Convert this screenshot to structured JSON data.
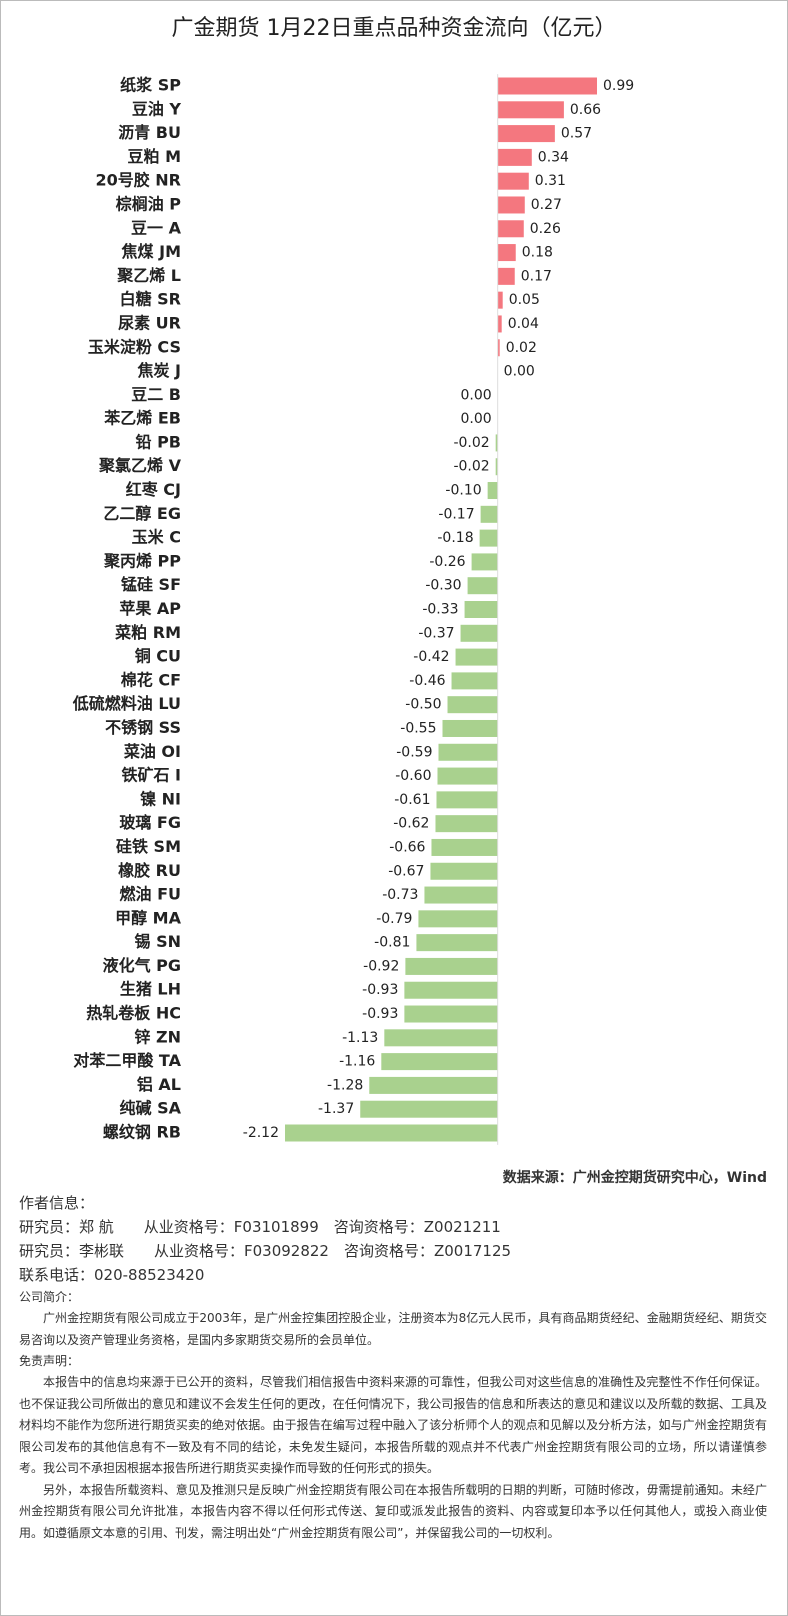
{
  "chart_data": {
    "type": "hbar",
    "title": "广金期货 1月22日重点品种资金流向（亿元）",
    "categories": [
      "纸浆 SP",
      "豆油 Y",
      "沥青 BU",
      "豆粕 M",
      "20号胶 NR",
      "棕榈油 P",
      "豆一 A",
      "焦煤 JM",
      "聚乙烯 L",
      "白糖 SR",
      "尿素 UR",
      "玉米淀粉 CS",
      "焦炭 J",
      "豆二 B",
      "苯乙烯 EB",
      "铅 PB",
      "聚氯乙烯 V",
      "红枣 CJ",
      "乙二醇 EG",
      "玉米 C",
      "聚丙烯 PP",
      "锰硅 SF",
      "苹果 AP",
      "菜粕 RM",
      "铜 CU",
      "棉花 CF",
      "低硫燃料油 LU",
      "不锈钢 SS",
      "菜油 OI",
      "铁矿石 I",
      "镍 NI",
      "玻璃 FG",
      "硅铁 SM",
      "橡胶 RU",
      "燃油 FU",
      "甲醇 MA",
      "锡 SN",
      "液化气 PG",
      "生猪 LH",
      "热轧卷板 HC",
      "锌 ZN",
      "对苯二甲酸 TA",
      "铝 AL",
      "纯碱 SA",
      "螺纹钢 RB"
    ],
    "values": [
      0.99,
      0.66,
      0.57,
      0.34,
      0.31,
      0.27,
      0.26,
      0.18,
      0.17,
      0.05,
      0.04,
      0.02,
      0,
      0,
      0,
      -0.02,
      -0.02,
      -0.1,
      -0.17,
      -0.18,
      -0.26,
      -0.3,
      -0.33,
      -0.37,
      -0.42,
      -0.46,
      -0.5,
      -0.55,
      -0.59,
      -0.6,
      -0.61,
      -0.62,
      -0.66,
      -0.67,
      -0.73,
      -0.79,
      -0.81,
      -0.92,
      -0.93,
      -0.93,
      -1.13,
      -1.16,
      -1.28,
      -1.37,
      -2.12
    ],
    "value_labels": [
      "0.99",
      "0.66",
      "0.57",
      "0.34",
      "0.31",
      "0.27",
      "0.26",
      "0.18",
      "0.17",
      "0.05",
      "0.04",
      "0.02",
      "0.00",
      "0.00",
      "0.00",
      "-0.02",
      "-0.02",
      "-0.10",
      "-0.17",
      "-0.18",
      "-0.26",
      "-0.30",
      "-0.33",
      "-0.37",
      "-0.42",
      "-0.46",
      "-0.50",
      "-0.55",
      "-0.59",
      "-0.60",
      "-0.61",
      "-0.62",
      "-0.66",
      "-0.67",
      "-0.73",
      "-0.79",
      "-0.81",
      "-0.92",
      "-0.93",
      "-0.93",
      "-1.13",
      "-1.16",
      "-1.28",
      "-1.37",
      "-2.12"
    ],
    "positive_color": "#f4777f",
    "negative_color": "#a9d18e"
  },
  "source": "数据来源：广州金控期货研究中心，Wind",
  "authors": {
    "heading": "作者信息：",
    "lines": [
      "研究员：郑 航　　从业资格号：F03101899　咨询资格号：Z0021211",
      "研究员：李彬联　　从业资格号：F03092822　咨询资格号：Z0017125",
      "联系电话：020-88523420"
    ]
  },
  "intro": {
    "heading": "公司简介：",
    "text": "广州金控期货有限公司成立于2003年，是广州金控集团控股企业，注册资本为8亿元人民币，具有商品期货经纪、金融期货经纪、期货交易咨询以及资产管理业务资格，是国内多家期货交易所的会员单位。"
  },
  "disclaimer": {
    "heading": "免责声明：",
    "paragraphs": [
      "本报告中的信息均来源于已公开的资料，尽管我们相信报告中资料来源的可靠性，但我公司对这些信息的准确性及完整性不作任何保证。也不保证我公司所做出的意见和建议不会发生任何的更改，在任何情况下，我公司报告的信息和所表达的意见和建议以及所载的数据、工具及材料均不能作为您所进行期货买卖的绝对依据。由于报告在编写过程中融入了该分析师个人的观点和见解以及分析方法，如与广州金控期货有限公司发布的其他信息有不一致及有不同的结论，未免发生疑问，本报告所载的观点并不代表广州金控期货有限公司的立场，所以请谨慎参考。我公司不承担因根据本报告所进行期货买卖操作而导致的任何形式的损失。",
      "另外，本报告所载资料、意见及推测只是反映广州金控期货有限公司在本报告所载明的日期的判断，可随时修改，毋需提前通知。未经广州金控期货有限公司允许批准，本报告内容不得以任何形式传送、复印或派发此报告的资料、内容或复印本予以任何其他人，或投入商业使用。如遵循原文本意的引用、刊发，需注明出处“广州金控期货有限公司”，并保留我公司的一切权利。"
    ]
  }
}
